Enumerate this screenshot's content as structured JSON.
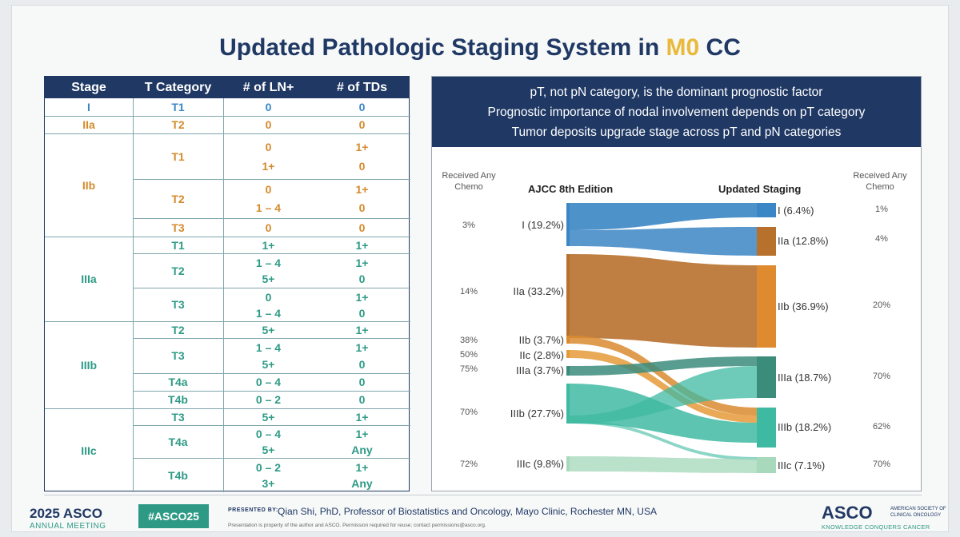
{
  "title": {
    "prefix": "Updated Pathologic Staging System in ",
    "highlight": "M0",
    "suffix": " CC"
  },
  "table": {
    "headers": [
      "Stage",
      "T Category",
      "# of LN+",
      "# of TDs"
    ],
    "stage_labels": [
      "I",
      "IIa",
      "IIb",
      "IIIa",
      "IIIb",
      "IIIc"
    ],
    "t_labels": [
      "T1",
      "T2",
      "T1",
      "T2",
      "T3",
      "T1",
      "T2",
      "T3",
      "T2",
      "T3",
      "T4a",
      "T4b",
      "T3",
      "T4a",
      "T4b"
    ],
    "ln_values": [
      "0",
      "0",
      "0",
      "1+",
      "0",
      "1 – 4",
      "0",
      "1+",
      "1 – 4",
      "5+",
      "0",
      "1 – 4",
      "5+",
      "1 – 4",
      "5+",
      "0 – 4",
      "0 – 2",
      "5+",
      "0 – 4",
      "5+",
      "0 – 2",
      "3+"
    ],
    "td_values": [
      "0",
      "0",
      "1+",
      "0",
      "1+",
      "0",
      "0",
      "1+",
      "1+",
      "0",
      "1+",
      "0",
      "1+",
      "1+",
      "0",
      "0",
      "0",
      "1+",
      "1+",
      "Any",
      "1+",
      "Any"
    ]
  },
  "panel": {
    "banner_lines": [
      "pT, not pN category, is the dominant prognostic factor",
      "Prognostic importance of nodal involvement depends on pT category",
      "Tumor deposits upgrade stage across pT and pN categories"
    ],
    "left_col_header": "Received Any Chemo",
    "left_title": "AJCC 8th Edition",
    "right_title": "Updated Staging",
    "right_col_header": "Received Any Chemo",
    "left_nodes": [
      {
        "label": "I (19.2%)",
        "chemo": "3%",
        "color": "#3b86c4"
      },
      {
        "label": "IIa (33.2%)",
        "chemo": "14%",
        "color": "#b8712d"
      },
      {
        "label": "IIb (3.7%)",
        "chemo": "38%",
        "color": "#d98b2f"
      },
      {
        "label": "IIc (2.8%)",
        "chemo": "50%",
        "color": "#e59a3a"
      },
      {
        "label": "IIIa (3.7%)",
        "chemo": "75%",
        "color": "#3c8c7c"
      },
      {
        "label": "IIIb (27.7%)",
        "chemo": "70%",
        "color": "#3fbaa2"
      },
      {
        "label": "IIIc (9.8%)",
        "chemo": "72%",
        "color": "#a9d9bd"
      }
    ],
    "right_nodes": [
      {
        "label": "I (6.4%)",
        "chemo": "1%",
        "color": "#3b86c4"
      },
      {
        "label": "IIa (12.8%)",
        "chemo": "4%",
        "color": "#b8712d"
      },
      {
        "label": "IIb (36.9%)",
        "chemo": "20%",
        "color": "#e08a30"
      },
      {
        "label": "IIIa (18.7%)",
        "chemo": "70%",
        "color": "#3c8c7c"
      },
      {
        "label": "IIIb (18.2%)",
        "chemo": "62%",
        "color": "#3fbaa2"
      },
      {
        "label": "IIIc (7.1%)",
        "chemo": "70%",
        "color": "#a9d9bd"
      }
    ]
  },
  "footer": {
    "year_brand": "2025 ASCO",
    "annual_meeting": "ANNUAL MEETING",
    "hashtag": "#ASCO25",
    "presented_by": "PRESENTED BY:",
    "presenter": "Qian Shi, PhD, Professor of Biostatistics and Oncology, Mayo Clinic, Rochester MN, USA",
    "disclaimer": "Presentation is property of the author and ASCO. Permission required for reuse; contact permissions@asco.org.",
    "asco_logo": "ASCO",
    "asco_society": "AMERICAN SOCIETY OF CLINICAL ONCOLOGY",
    "asco_tagline": "KNOWLEDGE CONQUERS CANCER"
  }
}
